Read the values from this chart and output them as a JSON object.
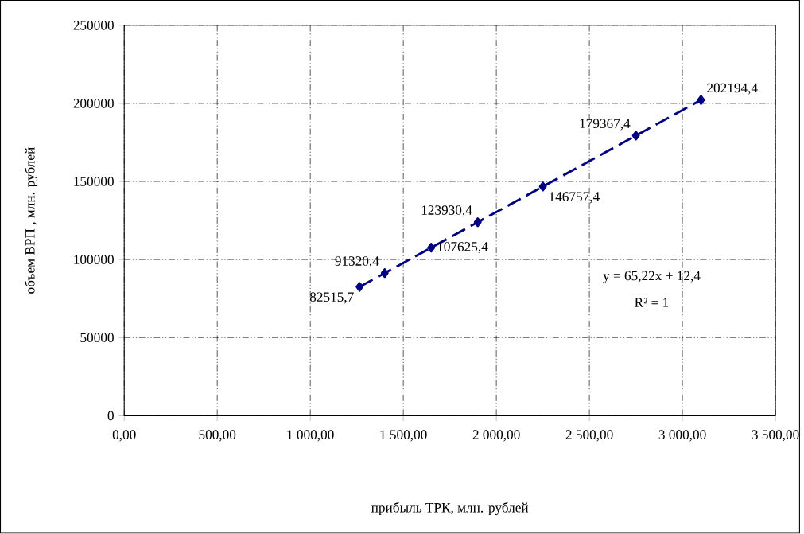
{
  "chart_data": {
    "type": "line",
    "xlabel": "прибыль ТРК, млн. рублей",
    "ylabel": "объем ВРП , млн. рублей",
    "x": [
      1265,
      1400,
      1650,
      1900,
      2250,
      2750,
      3100
    ],
    "series": [
      {
        "color": "#000080",
        "values": [
          82515.7,
          91320.4,
          107625.4,
          123930.4,
          146757.4,
          179367.4,
          202194.4
        ],
        "value_labels": [
          "82515,7",
          "91320,4",
          "107625,4",
          "123930,4",
          "146757,4",
          "179367,4",
          "202194,4"
        ]
      }
    ],
    "xlim": [
      0,
      3500
    ],
    "xticks": [
      {
        "value": 0,
        "label": "0,00"
      },
      {
        "value": 500,
        "label": "500,00"
      },
      {
        "value": 1000,
        "label": "1 000,00"
      },
      {
        "value": 1500,
        "label": "1 500,00"
      },
      {
        "value": 2000,
        "label": "2 000,00"
      },
      {
        "value": 2500,
        "label": "2 500,00"
      },
      {
        "value": 3000,
        "label": "3 000,00"
      },
      {
        "value": 3500,
        "label": "3 500,00"
      }
    ],
    "ylim": [
      0,
      250000
    ],
    "yticks": [
      0,
      50000,
      100000,
      150000,
      200000,
      250000
    ],
    "grid": true,
    "marker": "diamond",
    "line_style": "dashed",
    "annotations": [
      "y = 65,22x + 12,4",
      "R² = 1"
    ]
  }
}
